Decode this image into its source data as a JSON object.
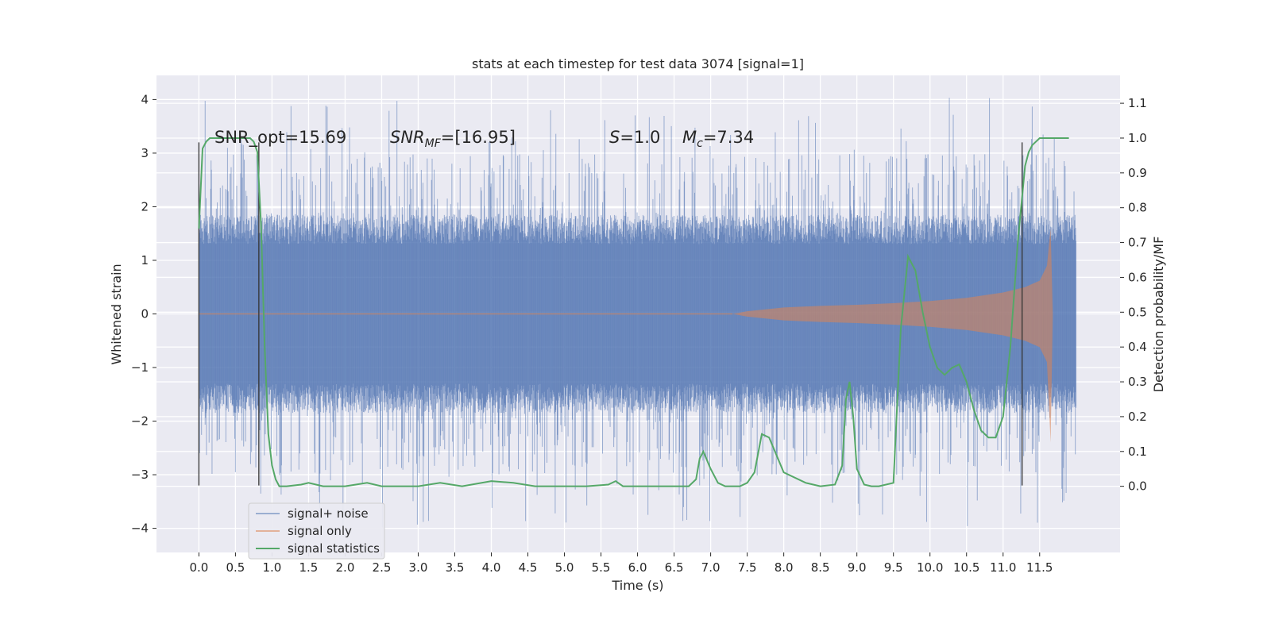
{
  "chart_data": {
    "type": "line",
    "title": "stats at each timestep for test data 3074 [signal=1]",
    "xlabel": "Time (s)",
    "ylabel": "Whitened strain",
    "y2label": "Detection probability/MF",
    "xlim": [
      -0.58,
      12.6
    ],
    "ylim": [
      -4.45,
      4.45
    ],
    "y2lim": [
      -0.19,
      1.18
    ],
    "xticks": [
      0.0,
      0.5,
      1.0,
      1.5,
      2.0,
      2.5,
      3.0,
      3.5,
      4.0,
      4.5,
      5.0,
      5.5,
      6.0,
      6.5,
      7.0,
      7.5,
      8.0,
      8.5,
      9.0,
      9.5,
      10.0,
      10.5,
      11.0,
      11.5
    ],
    "xtick_labels": [
      "0.0",
      "0.5",
      "1.0",
      "1.5",
      "2.0",
      "2.5",
      "3.0",
      "3.5",
      "4.0",
      "4.5",
      "5.0",
      "5.5",
      "6.0",
      "6.5",
      "7.0",
      "7.5",
      "8.0",
      "8.5",
      "9.0",
      "9.5",
      "10.0",
      "10.5",
      "11.0",
      "11.5"
    ],
    "yticks": [
      4,
      3,
      2,
      1,
      0,
      -1,
      -2,
      -3,
      -4
    ],
    "ytick_labels": [
      "4",
      "3",
      "2",
      "1",
      "0",
      "−1",
      "−2",
      "−3",
      "−4"
    ],
    "y2ticks": [
      1.1,
      1.0,
      0.9,
      0.8,
      0.7,
      0.6,
      0.5,
      0.4,
      0.3,
      0.2,
      0.1,
      0.0
    ],
    "y2tick_labels": [
      "1.1",
      "1.0",
      "0.9",
      "0.8",
      "0.7",
      "0.6",
      "0.5",
      "0.4",
      "0.3",
      "0.2",
      "0.1",
      "0.0"
    ],
    "legend_position": "lower-left",
    "grid": true,
    "annotations": {
      "snr_opt": "SNR_opt=15.69",
      "snr_mf_main": "SNR",
      "snr_mf_sub": "MF",
      "snr_mf_value": "=[16.95]",
      "s_label": "S",
      "s_value": "=1.0",
      "mc_label": "M",
      "mc_sub": "c",
      "mc_value": "=7.34"
    },
    "vertical_lines_x": [
      0.0,
      0.82,
      11.26
    ],
    "vertical_lines_y": [
      -3.2,
      3.2
    ],
    "series": [
      {
        "name": "signal+ noise",
        "color": "#4c72b0",
        "noise_envelope": {
          "x_start": 0.0,
          "x_end": 12.0,
          "core_amplitude": 1.3,
          "max_amplitude": 4.05
        }
      },
      {
        "name": "signal only",
        "color": "#dd8452",
        "chirp": {
          "x": [
            7.3,
            7.5,
            8.0,
            8.5,
            9.0,
            9.5,
            10.0,
            10.5,
            11.0,
            11.3,
            11.5,
            11.6,
            11.65,
            11.68
          ],
          "envelope": [
            0.0,
            0.05,
            0.12,
            0.15,
            0.17,
            0.2,
            0.24,
            0.3,
            0.4,
            0.5,
            0.62,
            0.9,
            1.6,
            0.0
          ]
        }
      },
      {
        "name": "signal statistics",
        "color": "#55a868",
        "x": [
          0.0,
          0.05,
          0.1,
          0.15,
          0.2,
          0.3,
          0.4,
          0.5,
          0.6,
          0.7,
          0.75,
          0.8,
          0.85,
          0.9,
          0.95,
          1.0,
          1.05,
          1.1,
          1.2,
          1.4,
          1.5,
          1.7,
          2.0,
          2.3,
          2.5,
          3.0,
          3.3,
          3.6,
          4.0,
          4.3,
          4.6,
          5.0,
          5.3,
          5.6,
          5.7,
          5.8,
          6.2,
          6.7,
          6.8,
          6.85,
          6.9,
          7.0,
          7.1,
          7.2,
          7.4,
          7.5,
          7.6,
          7.7,
          7.8,
          8.0,
          8.3,
          8.5,
          8.7,
          8.8,
          8.85,
          8.9,
          8.95,
          9.0,
          9.1,
          9.2,
          9.3,
          9.5,
          9.6,
          9.7,
          9.8,
          9.9,
          10.0,
          10.1,
          10.2,
          10.3,
          10.4,
          10.5,
          10.6,
          10.7,
          10.8,
          10.9,
          11.0,
          11.1,
          11.2,
          11.3,
          11.35,
          11.4,
          11.5,
          11.7,
          11.8,
          11.9
        ],
        "y": [
          0.74,
          0.97,
          0.99,
          1.0,
          1.0,
          1.0,
          1.0,
          1.0,
          1.0,
          1.0,
          0.99,
          0.96,
          0.75,
          0.4,
          0.15,
          0.06,
          0.02,
          0.0,
          0.0,
          0.005,
          0.01,
          0.0,
          0.0,
          0.01,
          0.0,
          0.0,
          0.01,
          0.0,
          0.015,
          0.01,
          0.0,
          0.0,
          0.0,
          0.005,
          0.015,
          0.0,
          0.0,
          0.0,
          0.02,
          0.08,
          0.1,
          0.05,
          0.01,
          0.0,
          0.0,
          0.01,
          0.04,
          0.15,
          0.14,
          0.04,
          0.01,
          0.0,
          0.005,
          0.06,
          0.25,
          0.3,
          0.2,
          0.05,
          0.005,
          0.0,
          0.0,
          0.01,
          0.45,
          0.66,
          0.62,
          0.5,
          0.4,
          0.34,
          0.32,
          0.34,
          0.35,
          0.3,
          0.22,
          0.16,
          0.14,
          0.14,
          0.2,
          0.4,
          0.7,
          0.92,
          0.96,
          0.98,
          1.0,
          1.0,
          1.0,
          1.0
        ]
      }
    ]
  }
}
